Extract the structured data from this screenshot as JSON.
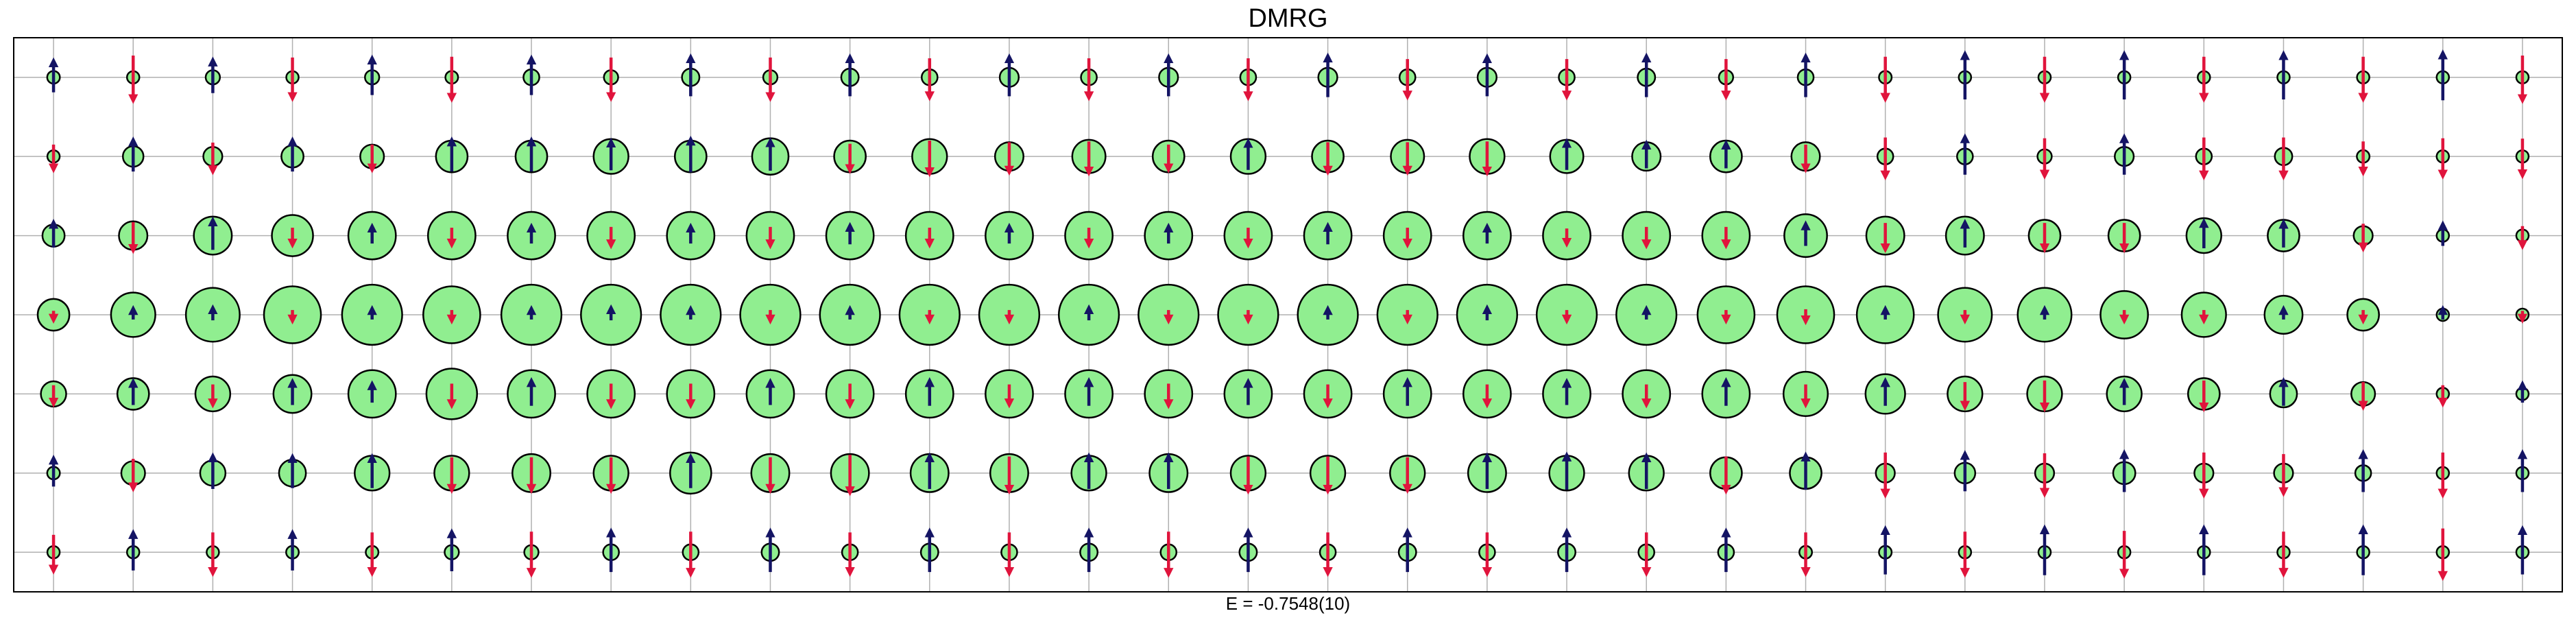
{
  "chart_data": {
    "type": "scatter",
    "title": "DMRG",
    "xlabel": "E = -0.7548(10)",
    "ylabel": "",
    "grid": true,
    "legend": "none",
    "columns": 32,
    "rows": 7,
    "xlim": [
      -0.5,
      31.5
    ],
    "ylim": [
      -0.5,
      6.5
    ],
    "colors": {
      "up_arrow": "#141464",
      "down_arrow": "#e0143c",
      "circle_fill": "#90ee90",
      "circle_edge": "#000000",
      "grid": "#b0b0b0"
    },
    "encoding": {
      "circle_size": "hole density",
      "arrow_length": "spin magnitude",
      "arrow_direction": "up = positive spin, down = negative spin"
    },
    "rows_data": [
      {
        "row": 6,
        "spin": [
          0.38,
          -0.55,
          0.4,
          -0.5,
          0.45,
          -0.52,
          0.45,
          -0.5,
          0.48,
          -0.5,
          0.48,
          -0.48,
          0.48,
          -0.48,
          0.48,
          -0.48,
          0.5,
          -0.46,
          0.48,
          -0.46,
          0.5,
          -0.46,
          0.5,
          -0.52,
          0.56,
          -0.52,
          0.56,
          -0.52,
          0.56,
          -0.52,
          0.58,
          -0.55
        ],
        "hole": [
          0.08,
          0.06,
          0.09,
          0.07,
          0.09,
          0.08,
          0.1,
          0.09,
          0.11,
          0.09,
          0.11,
          0.1,
          0.12,
          0.1,
          0.12,
          0.1,
          0.12,
          0.1,
          0.12,
          0.1,
          0.11,
          0.09,
          0.1,
          0.08,
          0.06,
          0.05,
          0.06,
          0.05,
          0.06,
          0.05,
          0.03,
          0.03
        ]
      },
      {
        "row": 5,
        "spin": [
          -0.3,
          0.38,
          -0.35,
          0.38,
          -0.3,
          0.38,
          0.38,
          0.35,
          0.4,
          0.36,
          -0.32,
          -0.4,
          -0.36,
          -0.38,
          -0.3,
          0.34,
          -0.36,
          -0.36,
          -0.38,
          0.34,
          0.3,
          0.3,
          -0.3,
          -0.48,
          0.46,
          -0.46,
          0.46,
          -0.48,
          -0.48,
          -0.38,
          -0.46,
          -0.45
        ],
        "hole": [
          0.05,
          0.13,
          0.12,
          0.14,
          0.15,
          0.2,
          0.2,
          0.22,
          0.2,
          0.23,
          0.2,
          0.22,
          0.18,
          0.21,
          0.2,
          0.22,
          0.2,
          0.21,
          0.22,
          0.21,
          0.18,
          0.2,
          0.18,
          0.1,
          0.1,
          0.09,
          0.12,
          0.1,
          0.11,
          0.08,
          0.04,
          0.04
        ]
      },
      {
        "row": 4,
        "spin": [
          0.3,
          -0.34,
          0.36,
          -0.2,
          0.2,
          -0.2,
          0.2,
          -0.22,
          0.2,
          -0.22,
          0.22,
          -0.2,
          0.2,
          -0.2,
          0.2,
          -0.2,
          0.22,
          -0.2,
          0.2,
          -0.18,
          -0.22,
          -0.22,
          0.26,
          -0.32,
          0.3,
          -0.32,
          -0.32,
          0.32,
          0.3,
          -0.3,
          0.26,
          -0.24
        ],
        "hole": [
          0.14,
          0.18,
          0.24,
          0.26,
          0.3,
          0.3,
          0.3,
          0.3,
          0.3,
          0.3,
          0.3,
          0.3,
          0.3,
          0.3,
          0.3,
          0.3,
          0.3,
          0.3,
          0.3,
          0.3,
          0.3,
          0.3,
          0.27,
          0.24,
          0.24,
          0.2,
          0.2,
          0.22,
          0.2,
          0.12,
          0.05,
          0.05
        ]
      },
      {
        "row": 3,
        "spin": [
          -0.1,
          0.12,
          0.14,
          -0.12,
          0.12,
          -0.12,
          0.12,
          0.14,
          0.12,
          -0.12,
          0.12,
          -0.12,
          -0.12,
          0.14,
          -0.12,
          -0.12,
          0.12,
          -0.12,
          0.14,
          -0.12,
          0.12,
          -0.12,
          -0.14,
          0.12,
          -0.12,
          0.12,
          -0.12,
          -0.12,
          0.12,
          -0.12,
          0.12,
          -0.1
        ],
        "hole": [
          0.2,
          0.28,
          0.34,
          0.36,
          0.38,
          0.36,
          0.38,
          0.38,
          0.38,
          0.38,
          0.38,
          0.38,
          0.38,
          0.38,
          0.38,
          0.38,
          0.38,
          0.38,
          0.38,
          0.38,
          0.38,
          0.36,
          0.36,
          0.36,
          0.34,
          0.34,
          0.3,
          0.28,
          0.24,
          0.2,
          0.04,
          0.04
        ]
      },
      {
        "row": 2,
        "spin": [
          -0.22,
          0.28,
          -0.24,
          0.28,
          0.22,
          -0.26,
          0.3,
          -0.26,
          -0.26,
          0.28,
          -0.26,
          0.3,
          -0.24,
          0.3,
          -0.26,
          0.28,
          -0.24,
          0.3,
          -0.24,
          0.28,
          -0.24,
          0.3,
          -0.24,
          0.3,
          -0.3,
          -0.34,
          0.28,
          -0.34,
          0.3,
          -0.3,
          -0.22,
          0.22
        ],
        "hole": [
          0.16,
          0.2,
          0.22,
          0.24,
          0.3,
          0.32,
          0.3,
          0.3,
          0.3,
          0.3,
          0.3,
          0.3,
          0.3,
          0.3,
          0.3,
          0.3,
          0.3,
          0.3,
          0.3,
          0.3,
          0.3,
          0.3,
          0.28,
          0.25,
          0.22,
          0.22,
          0.22,
          0.2,
          0.17,
          0.15,
          0.05,
          0.05
        ]
      },
      {
        "row": 1,
        "spin": [
          0.34,
          -0.36,
          0.4,
          0.38,
          0.38,
          -0.4,
          -0.4,
          -0.4,
          0.38,
          -0.4,
          -0.46,
          0.4,
          -0.42,
          0.4,
          0.4,
          -0.42,
          -0.42,
          -0.4,
          0.4,
          0.42,
          0.4,
          -0.42,
          0.42,
          -0.52,
          0.46,
          -0.5,
          0.48,
          -0.52,
          -0.48,
          0.48,
          -0.52,
          0.48
        ],
        "hole": [
          0.08,
          0.15,
          0.16,
          0.17,
          0.22,
          0.22,
          0.24,
          0.22,
          0.26,
          0.24,
          0.24,
          0.24,
          0.24,
          0.22,
          0.24,
          0.22,
          0.22,
          0.22,
          0.24,
          0.22,
          0.22,
          0.2,
          0.2,
          0.12,
          0.13,
          0.12,
          0.14,
          0.12,
          0.12,
          0.1,
          0.04,
          0.04
        ]
      },
      {
        "row": 0,
        "spin": [
          -0.44,
          0.46,
          -0.5,
          0.46,
          -0.5,
          0.48,
          -0.52,
          0.5,
          -0.52,
          0.5,
          -0.5,
          0.5,
          -0.5,
          0.5,
          -0.52,
          0.5,
          -0.5,
          0.5,
          -0.5,
          0.5,
          -0.5,
          0.5,
          -0.5,
          0.56,
          -0.52,
          0.58,
          -0.54,
          0.58,
          -0.52,
          0.58,
          -0.6,
          0.56
        ],
        "hole": [
          0.05,
          0.07,
          0.07,
          0.08,
          0.08,
          0.09,
          0.09,
          0.1,
          0.1,
          0.11,
          0.1,
          0.11,
          0.1,
          0.11,
          0.1,
          0.11,
          0.1,
          0.11,
          0.1,
          0.11,
          0.1,
          0.1,
          0.08,
          0.08,
          0.06,
          0.06,
          0.06,
          0.06,
          0.05,
          0.04,
          0.02,
          0.02
        ]
      }
    ]
  }
}
